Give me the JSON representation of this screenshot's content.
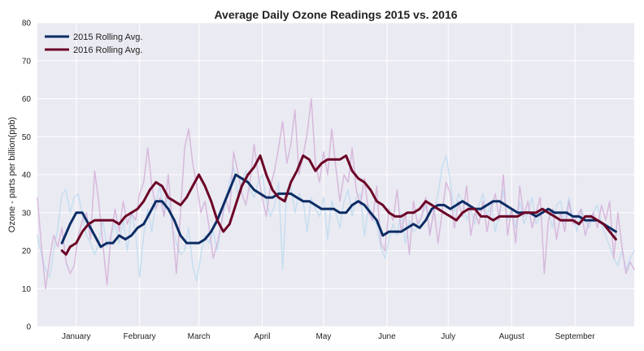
{
  "chart_data": {
    "type": "line",
    "title": "Average Daily Ozone Readings 2015 vs. 2016",
    "xlabel": "",
    "ylabel": "Ozone - parts per billion(ppb)",
    "ylim": [
      0,
      80
    ],
    "yticks": [
      0,
      10,
      20,
      30,
      40,
      50,
      60,
      70,
      80
    ],
    "x_unit": "day of year",
    "xlim": [
      -19,
      273
    ],
    "month_ticks": [
      {
        "label": "January",
        "day": 0
      },
      {
        "label": "February",
        "day": 31
      },
      {
        "label": "March",
        "day": 60
      },
      {
        "label": "April",
        "day": 91
      },
      {
        "label": "May",
        "day": 121
      },
      {
        "label": "June",
        "day": 152
      },
      {
        "label": "July",
        "day": 182
      },
      {
        "label": "August",
        "day": 213
      },
      {
        "label": "September",
        "day": 244
      }
    ],
    "grid": true,
    "legend_position": "top-left",
    "series": [
      {
        "name": "2015 Rolling Avg.",
        "color": "#0b2c64",
        "x": [
          -7,
          -3,
          0,
          3,
          6,
          9,
          12,
          15,
          18,
          21,
          24,
          27,
          30,
          33,
          36,
          39,
          42,
          45,
          48,
          51,
          54,
          57,
          60,
          63,
          66,
          69,
          72,
          75,
          78,
          81,
          84,
          87,
          90,
          93,
          96,
          99,
          102,
          105,
          108,
          111,
          114,
          117,
          120,
          123,
          126,
          129,
          132,
          135,
          138,
          141,
          144,
          147,
          150,
          153,
          156,
          159,
          162,
          165,
          168,
          171,
          174,
          177,
          180,
          183,
          186,
          189,
          192,
          195,
          198,
          201,
          204,
          207,
          210,
          213,
          216,
          219,
          222,
          225,
          228,
          231,
          234,
          237,
          240,
          243,
          246,
          249,
          252,
          255,
          258,
          261,
          264
        ],
        "values": [
          22,
          27,
          30,
          30,
          27,
          24,
          21,
          22,
          22,
          24,
          23,
          24,
          26,
          27,
          30,
          33,
          33,
          31,
          28,
          24,
          22,
          22,
          22,
          23,
          25,
          28,
          32,
          36,
          40,
          39,
          38,
          36,
          35,
          34,
          34,
          35,
          35,
          35,
          34,
          33,
          33,
          32,
          31,
          31,
          31,
          30,
          30,
          32,
          33,
          32,
          30,
          28,
          24,
          25,
          25,
          25,
          26,
          27,
          26,
          28,
          31,
          32,
          32,
          31,
          32,
          33,
          32,
          31,
          31,
          32,
          33,
          33,
          32,
          31,
          30,
          30,
          30,
          29,
          30,
          31,
          30,
          30,
          30,
          29,
          29,
          28,
          28,
          28,
          27,
          26,
          25
        ]
      },
      {
        "name": "2016 Rolling Avg.",
        "color": "#6b0326",
        "x": [
          -7,
          -5,
          -3,
          0,
          3,
          6,
          9,
          12,
          15,
          18,
          21,
          24,
          27,
          30,
          33,
          36,
          39,
          42,
          45,
          48,
          51,
          54,
          57,
          60,
          63,
          66,
          69,
          72,
          75,
          78,
          81,
          84,
          87,
          90,
          93,
          96,
          99,
          102,
          105,
          108,
          111,
          114,
          117,
          120,
          123,
          126,
          129,
          132,
          135,
          138,
          141,
          144,
          147,
          150,
          153,
          156,
          159,
          162,
          165,
          168,
          171,
          174,
          177,
          180,
          183,
          186,
          189,
          192,
          195,
          198,
          201,
          204,
          207,
          210,
          213,
          216,
          219,
          222,
          225,
          228,
          231,
          234,
          237,
          240,
          243,
          246,
          249,
          252,
          255,
          258,
          261,
          264
        ],
        "values": [
          20,
          19,
          21,
          22,
          25,
          27,
          28,
          28,
          28,
          28,
          27,
          29,
          30,
          31,
          33,
          36,
          38,
          37,
          34,
          33,
          32,
          34,
          37,
          40,
          37,
          33,
          28,
          25,
          27,
          32,
          37,
          40,
          42,
          45,
          40,
          36,
          34,
          33,
          38,
          41,
          45,
          44,
          41,
          43,
          44,
          44,
          44,
          45,
          41,
          39,
          38,
          36,
          33,
          32,
          30,
          29,
          29,
          30,
          30,
          31,
          33,
          32,
          31,
          30,
          29,
          28,
          30,
          31,
          31,
          29,
          29,
          28,
          29,
          29,
          29,
          29,
          30,
          30,
          30,
          31,
          30,
          29,
          28,
          28,
          28,
          27,
          29,
          29,
          28,
          27,
          25,
          23
        ]
      },
      {
        "name": "",
        "color": "#c0dcf0",
        "x": [
          -19,
          -17,
          -15,
          -13,
          -11,
          -9,
          -7,
          -5,
          -3,
          -1,
          1,
          3,
          5,
          7,
          9,
          11,
          13,
          15,
          17,
          19,
          21,
          23,
          25,
          27,
          29,
          31,
          33,
          35,
          37,
          39,
          41,
          43,
          45,
          47,
          49,
          51,
          53,
          55,
          57,
          59,
          61,
          63,
          65,
          67,
          69,
          71,
          73,
          75,
          77,
          79,
          81,
          83,
          85,
          87,
          89,
          91,
          93,
          95,
          97,
          99,
          101,
          103,
          105,
          107,
          109,
          111,
          113,
          115,
          117,
          119,
          121,
          123,
          125,
          127,
          129,
          131,
          133,
          135,
          137,
          139,
          141,
          143,
          145,
          147,
          149,
          151,
          153,
          155,
          157,
          159,
          161,
          163,
          165,
          167,
          169,
          171,
          173,
          175,
          177,
          179,
          181,
          183,
          185,
          187,
          189,
          191,
          193,
          195,
          197,
          199,
          201,
          203,
          205,
          207,
          209,
          211,
          213,
          215,
          217,
          219,
          221,
          223,
          225,
          227,
          229,
          231,
          233,
          235,
          237,
          239,
          241,
          243,
          245,
          247,
          249,
          251,
          253,
          255,
          257,
          259,
          261,
          263,
          265,
          267,
          269,
          271,
          273
        ],
        "values": [
          24,
          19,
          15,
          13,
          20,
          26,
          35,
          36,
          30,
          34,
          35,
          29,
          24,
          22,
          19,
          22,
          28,
          21,
          24,
          27,
          22,
          28,
          20,
          30,
          25,
          13,
          24,
          31,
          25,
          33,
          37,
          29,
          35,
          26,
          22,
          19,
          20,
          26,
          16,
          12,
          19,
          24,
          22,
          25,
          20,
          27,
          33,
          38,
          42,
          35,
          38,
          41,
          36,
          34,
          38,
          40,
          33,
          29,
          32,
          38,
          15,
          36,
          37,
          30,
          35,
          33,
          25,
          34,
          31,
          29,
          34,
          23,
          33,
          30,
          26,
          33,
          36,
          29,
          34,
          35,
          24,
          32,
          28,
          27,
          21,
          18,
          23,
          27,
          24,
          30,
          22,
          28,
          25,
          26,
          29,
          32,
          25,
          30,
          35,
          42,
          45,
          38,
          30,
          35,
          33,
          28,
          31,
          27,
          32,
          35,
          29,
          33,
          25,
          30,
          36,
          28,
          31,
          26,
          33,
          27,
          30,
          34,
          27,
          29,
          31,
          30,
          26,
          32,
          33,
          27,
          34,
          29,
          25,
          31,
          28,
          26,
          30,
          32,
          27,
          24,
          21,
          18,
          16,
          20,
          15,
          18,
          20
        ]
      },
      {
        "name": "",
        "color": "#d4b0d8",
        "x": [
          -19,
          -17,
          -15,
          -13,
          -11,
          -9,
          -7,
          -5,
          -3,
          -1,
          1,
          3,
          5,
          7,
          9,
          11,
          13,
          15,
          17,
          19,
          21,
          23,
          25,
          27,
          29,
          31,
          33,
          35,
          37,
          39,
          41,
          43,
          45,
          47,
          49,
          51,
          53,
          55,
          57,
          59,
          61,
          63,
          65,
          67,
          69,
          71,
          73,
          75,
          77,
          79,
          81,
          83,
          85,
          87,
          89,
          91,
          93,
          95,
          97,
          99,
          101,
          103,
          105,
          107,
          109,
          111,
          113,
          115,
          117,
          119,
          121,
          123,
          125,
          127,
          129,
          131,
          133,
          135,
          137,
          139,
          141,
          143,
          145,
          147,
          149,
          151,
          153,
          155,
          157,
          159,
          161,
          163,
          165,
          167,
          169,
          171,
          173,
          175,
          177,
          179,
          181,
          183,
          185,
          187,
          189,
          191,
          193,
          195,
          197,
          199,
          201,
          203,
          205,
          207,
          209,
          211,
          213,
          215,
          217,
          219,
          221,
          223,
          225,
          227,
          229,
          231,
          233,
          235,
          237,
          239,
          241,
          243,
          245,
          247,
          249,
          251,
          253,
          255,
          257,
          259,
          261,
          263,
          265,
          267,
          269,
          271,
          273
        ],
        "values": [
          34,
          21,
          10,
          18,
          24,
          21,
          26,
          17,
          14,
          16,
          24,
          28,
          30,
          23,
          41,
          33,
          22,
          11,
          24,
          31,
          25,
          33,
          27,
          30,
          28,
          35,
          38,
          47,
          37,
          31,
          34,
          29,
          40,
          27,
          14,
          30,
          47,
          52,
          43,
          37,
          30,
          33,
          26,
          18,
          22,
          27,
          34,
          30,
          46,
          41,
          35,
          32,
          38,
          48,
          40,
          34,
          29,
          37,
          41,
          47,
          54,
          43,
          48,
          57,
          40,
          45,
          51,
          60,
          43,
          38,
          46,
          40,
          52,
          42,
          33,
          40,
          38,
          47,
          36,
          32,
          39,
          30,
          28,
          37,
          22,
          20,
          31,
          28,
          36,
          25,
          30,
          19,
          33,
          27,
          29,
          34,
          24,
          31,
          22,
          30,
          38,
          35,
          26,
          33,
          29,
          37,
          24,
          30,
          27,
          33,
          25,
          31,
          35,
          28,
          40,
          24,
          31,
          22,
          37,
          29,
          33,
          26,
          30,
          34,
          14,
          28,
          31,
          23,
          30,
          25,
          33,
          27,
          29,
          31,
          24,
          28,
          30,
          26,
          32,
          28,
          33,
          18,
          30,
          21,
          14,
          17,
          15
        ]
      }
    ]
  }
}
